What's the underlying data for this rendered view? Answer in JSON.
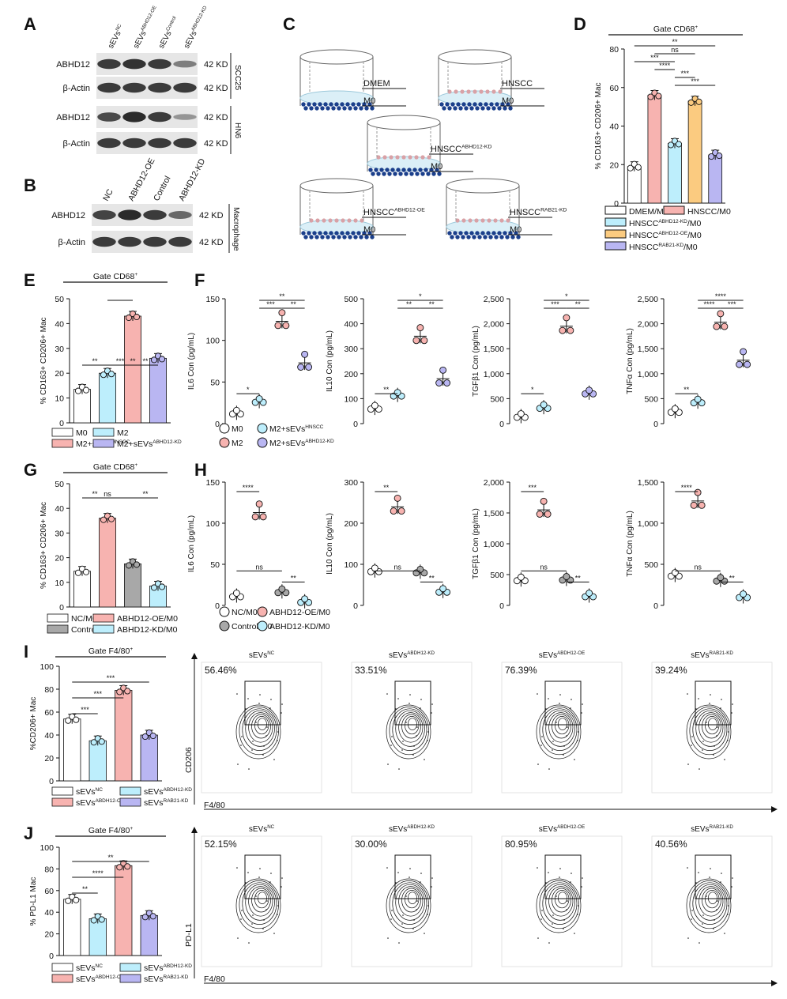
{
  "colors": {
    "white": "#ffffff",
    "cyan": "#bdeefc",
    "pink": "#f7b3b0",
    "orange": "#fbcb80",
    "purple": "#b9b6f2",
    "grey": "#a8a8a8",
    "band": "#1c1c1c",
    "blot": "#d6d6d6",
    "dish": "#dbeff7",
    "dot": "#1b3f8b"
  },
  "panelA": {
    "label": "A",
    "lanes": [
      "sEVsNC",
      "sEVsABHD12-OE",
      "sEVsControl",
      "sEVsABHD12-KD"
    ],
    "rows": [
      {
        "name": "ABHD12",
        "kd": "42 KD",
        "bands": [
          0.8,
          0.85,
          0.8,
          0.35
        ]
      },
      {
        "name": "β-Actin",
        "kd": "42 KD",
        "bands": [
          0.8,
          0.8,
          0.8,
          0.8
        ]
      },
      {
        "name": "ABHD12",
        "kd": "42 KD",
        "bands": [
          0.7,
          0.9,
          0.8,
          0.2
        ]
      },
      {
        "name": "β-Actin",
        "kd": "42 KD",
        "bands": [
          0.8,
          0.8,
          0.8,
          0.8
        ]
      }
    ],
    "groups": [
      "SCC25",
      "HN6"
    ]
  },
  "panelB": {
    "label": "B",
    "lanes": [
      "NC",
      "ABHD12-OE",
      "Control",
      "ABHD12-KD"
    ],
    "rows": [
      {
        "name": "ABHD12",
        "kd": "42 KD",
        "bands": [
          0.75,
          0.9,
          0.8,
          0.5
        ]
      },
      {
        "name": "β-Actin",
        "kd": "42 KD",
        "bands": [
          0.8,
          0.8,
          0.8,
          0.8
        ]
      }
    ],
    "group": "Macrophage"
  },
  "panelC": {
    "label": "C",
    "dishes": [
      {
        "upper": "DMEM",
        "lower": "M0",
        "cells": false
      },
      {
        "upper": "HNSCC",
        "lower": "M0",
        "cells": true
      },
      {
        "upper": "HNSCCABHD12-KD",
        "lower": "M0",
        "cells": true
      },
      {
        "upper": "HNSCCABHD12-OE",
        "lower": "M0",
        "cells": true
      },
      {
        "upper": "HNSCCRAB21-KD",
        "lower": "M0",
        "cells": true
      }
    ]
  },
  "chart_data": [
    {
      "panel": "D",
      "type": "bar",
      "title": "Gate CD68+",
      "ylabel": "% CD163+ CD206+ Mac",
      "ylim": [
        0,
        80
      ],
      "yticks": [
        0,
        20,
        40,
        60,
        80
      ],
      "categories": [
        "DMEM/M0",
        "HNSCC/M0",
        "HNSCCABHD12-KD/M0",
        "HNSCCABHD12-OE/M0",
        "HNSCCRAB21-KD/M0"
      ],
      "values": [
        19,
        56,
        31,
        53,
        25
      ],
      "sig": [
        "**",
        "ns",
        "***",
        "****",
        "***",
        "***"
      ]
    },
    {
      "panel": "E",
      "type": "bar",
      "title": "Gate CD68+",
      "ylabel": "% CD163+ CD206+ Mac",
      "ylim": [
        0,
        50
      ],
      "yticks": [
        0,
        10,
        20,
        30,
        40,
        50
      ],
      "categories": [
        "M0",
        "M2",
        "M2+sEVsHNSCC",
        "M2+sEVsABHD12-KD"
      ],
      "values": [
        13.5,
        20,
        43,
        26
      ],
      "sig": [
        "**",
        "**",
        "***",
        "**"
      ]
    },
    {
      "panel": "F",
      "type": "scatter",
      "series": [
        {
          "ylabel": "IL6 Con (pg/mL)",
          "ylim": [
            0,
            150
          ],
          "yticks": [
            "0",
            "50",
            "100",
            "150"
          ],
          "values": [
            13,
            27,
            123,
            73
          ],
          "sig": [
            "*",
            "***",
            "**",
            "**"
          ]
        },
        {
          "ylabel": "IL10 Con (pg/mL)",
          "ylim": [
            0,
            500
          ],
          "yticks": [
            "0",
            "100",
            "200",
            "300",
            "400",
            "500"
          ],
          "values": [
            63,
            115,
            350,
            180
          ],
          "sig": [
            "**",
            "**",
            "**",
            "*"
          ]
        },
        {
          "ylabel": "TGFβ1 Con (pg/mL)",
          "ylim": [
            0,
            2500
          ],
          "yticks": [
            "0",
            "500",
            "1,000",
            "1,500",
            "2,000",
            "2,500"
          ],
          "values": [
            150,
            330,
            1950,
            620
          ],
          "sig": [
            "*",
            "***",
            "**",
            "*"
          ]
        },
        {
          "ylabel": "TNFα Con (pg/mL)",
          "ylim": [
            0,
            2500
          ],
          "yticks": [
            "0",
            "500",
            "1,000",
            "1,500",
            "2,000",
            "2,500"
          ],
          "values": [
            250,
            440,
            2030,
            1270
          ],
          "sig": [
            "**",
            "****",
            "***",
            "****"
          ]
        }
      ],
      "legend": [
        "M0",
        "M2+sEVsHNSCC",
        "M2",
        "M2+sEVsABHD12-KD"
      ]
    },
    {
      "panel": "G",
      "type": "bar",
      "title": "Gate CD68+",
      "ylabel": "% CD163+ CD206+ Mac",
      "ylim": [
        0,
        50
      ],
      "yticks": [
        0,
        10,
        20,
        30,
        40,
        50
      ],
      "categories": [
        "NC/M0",
        "ABHD12-OE/M0",
        "Control/M0",
        "ABHD12-KD/M0"
      ],
      "values": [
        14.5,
        36,
        17.5,
        8.5
      ],
      "sig": [
        "**",
        "ns",
        "**"
      ]
    },
    {
      "panel": "H",
      "type": "scatter",
      "series": [
        {
          "ylabel": "IL6 Con (pg/mL)",
          "ylim": [
            0,
            150
          ],
          "yticks": [
            "0",
            "50",
            "100",
            "150"
          ],
          "values": [
            12,
            113,
            17,
            5
          ],
          "sig": [
            "****",
            "ns",
            "**"
          ]
        },
        {
          "ylabel": "IL10 Con (pg/mL)",
          "ylim": [
            0,
            300
          ],
          "yticks": [
            "0",
            "100",
            "200",
            "300"
          ],
          "values": [
            85,
            240,
            82,
            35
          ],
          "sig": [
            "**",
            "ns",
            "**"
          ]
        },
        {
          "ylabel": "TGFβ1 Con (pg/mL)",
          "ylim": [
            0,
            2000
          ],
          "yticks": [
            "0",
            "500",
            "1,000",
            "1,500",
            "2,000"
          ],
          "values": [
            420,
            1550,
            430,
            160
          ],
          "sig": [
            "***",
            "ns",
            "**"
          ]
        },
        {
          "ylabel": "TNFα Con (pg/mL)",
          "ylim": [
            0,
            1500
          ],
          "yticks": [
            "0",
            "500",
            "1,000",
            "1,500"
          ],
          "values": [
            370,
            1270,
            310,
            110
          ],
          "sig": [
            "****",
            "ns",
            "**"
          ]
        }
      ],
      "legend": [
        "NC/M0",
        "ABHD12-OE/M0",
        "Control/M0",
        "ABHD12-KD/M0"
      ]
    },
    {
      "panel": "I",
      "type": "bar",
      "title": "Gate F4/80+",
      "ylabel": "%CD206+ Mac",
      "ylim": [
        0,
        100
      ],
      "yticks": [
        0,
        20,
        40,
        60,
        80,
        100
      ],
      "categories": [
        "sEVsNC",
        "sEVsABDH12-KD",
        "sEVsABDH12-OE",
        "sEVsRAB21-KD"
      ],
      "values": [
        54,
        35,
        79,
        40
      ],
      "sig": [
        "***",
        "***",
        "***"
      ]
    },
    {
      "panel": "J",
      "type": "bar",
      "title": "Gate F4/80+",
      "ylabel": "% PD-L1 Mac",
      "ylim": [
        0,
        100
      ],
      "yticks": [
        0,
        20,
        40,
        60,
        80,
        100
      ],
      "categories": [
        "sEVsNC",
        "sEVsABDH12-KD",
        "sEVsABDH12-OE",
        "sEVsRAB21-KD"
      ],
      "values": [
        52,
        34,
        83,
        37
      ],
      "sig": [
        "**",
        "****",
        "**"
      ]
    }
  ],
  "panelI": {
    "label": "I",
    "xaxis": "F4/80",
    "yaxis": "CD206",
    "plots": [
      {
        "title": "sEVsNC",
        "pct": "56.46%"
      },
      {
        "title": "sEVsABDH12-KD",
        "pct": "33.51%"
      },
      {
        "title": "sEVsABDH12-OE",
        "pct": "76.39%"
      },
      {
        "title": "sEVsRAB21-KD",
        "pct": "39.24%"
      }
    ]
  },
  "panelJ": {
    "label": "J",
    "xaxis": "F4/80",
    "yaxis": "PD-L1",
    "plots": [
      {
        "title": "sEVsNC",
        "pct": "52.15%"
      },
      {
        "title": "sEVsABDH12-KD",
        "pct": "30.00%"
      },
      {
        "title": "sEVsABDH12-OE",
        "pct": "80.95%"
      },
      {
        "title": "sEVsRAB21-KD",
        "pct": "40.56%"
      }
    ]
  },
  "labels": {
    "A": "A",
    "B": "B",
    "C": "C",
    "D": "D",
    "E": "E",
    "F": "F",
    "G": "G",
    "H": "H",
    "I": "I",
    "J": "J"
  }
}
